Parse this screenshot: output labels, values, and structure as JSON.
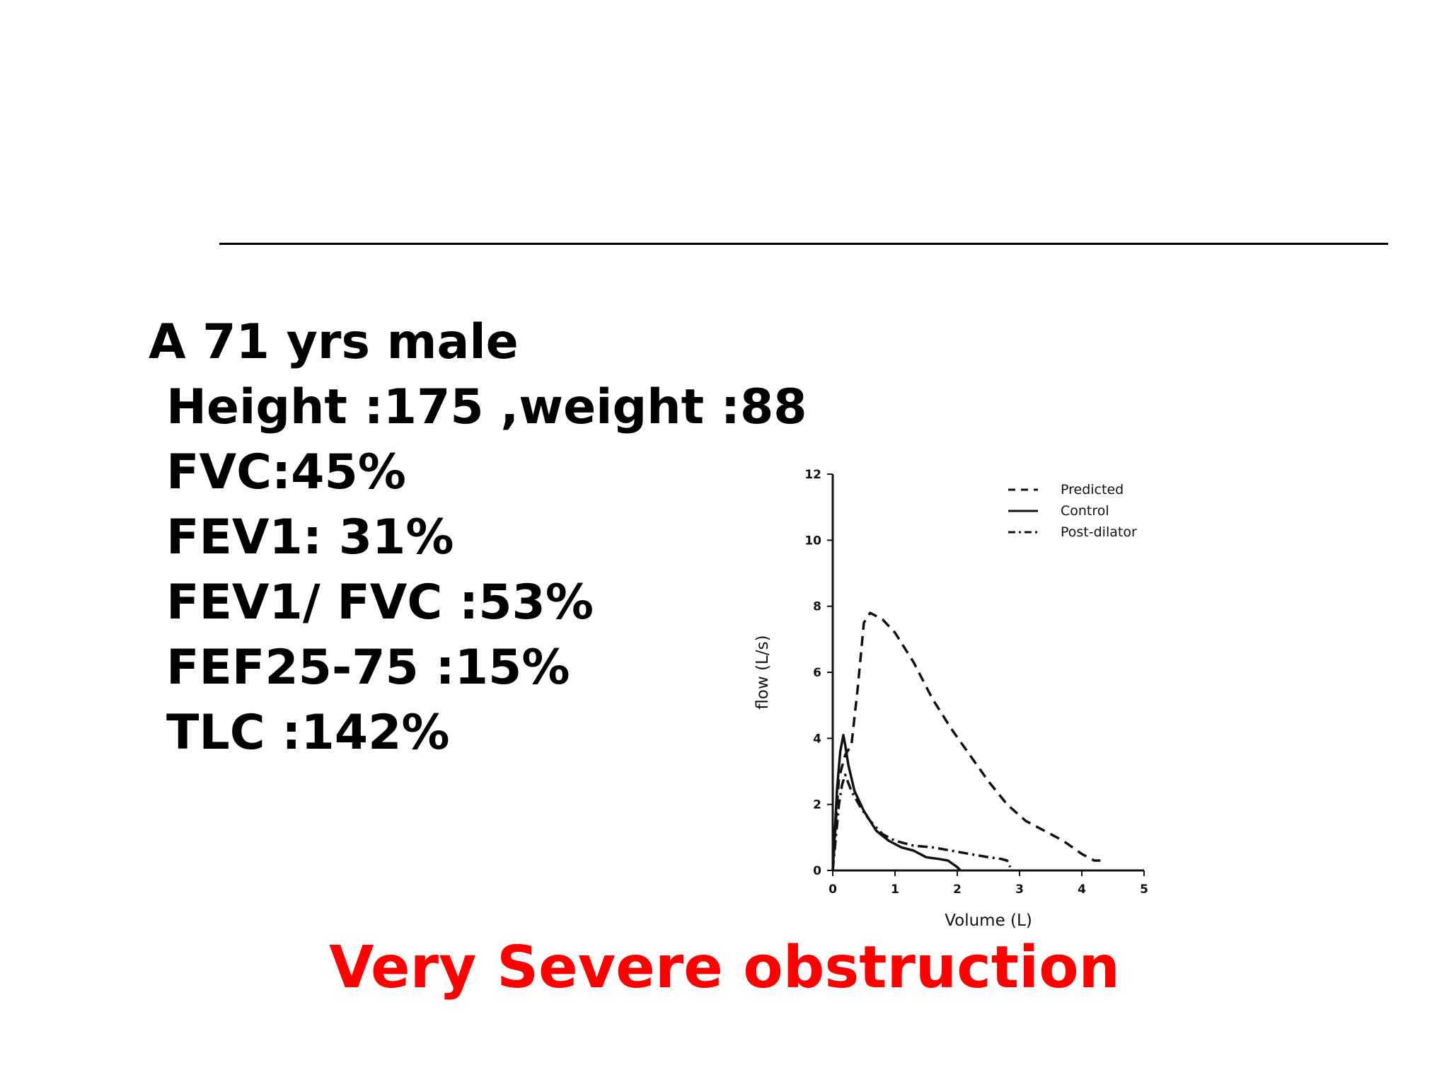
{
  "case": {
    "headline": "A 71 yrs male",
    "items": [
      "Height :175 ,weight :88",
      "FVC:45%",
      "FEV1: 31%",
      "FEV1/ FVC :53%",
      "FEF25-75 :15%",
      "TLC :142%"
    ]
  },
  "verdict": "Very Severe obstruction",
  "chart_data": {
    "type": "line",
    "xlabel": "Volume (L)",
    "ylabel": "flow (L/s)",
    "xlim": [
      0,
      5
    ],
    "ylim": [
      0,
      12
    ],
    "xticks": [
      "0",
      "1",
      "2",
      "3",
      "4",
      "5"
    ],
    "yticks": [
      "0",
      "2",
      "4",
      "6",
      "8",
      "10",
      "12"
    ],
    "grid": false,
    "legend_position": "top-right",
    "series": [
      {
        "name": "Predicted",
        "style": "dashed",
        "points": [
          [
            0.0,
            0.0
          ],
          [
            0.05,
            1.5
          ],
          [
            0.1,
            2.8
          ],
          [
            0.2,
            3.5
          ],
          [
            0.3,
            3.8
          ],
          [
            0.4,
            5.5
          ],
          [
            0.5,
            7.5
          ],
          [
            0.6,
            7.8
          ],
          [
            0.8,
            7.6
          ],
          [
            1.0,
            7.2
          ],
          [
            1.3,
            6.3
          ],
          [
            1.6,
            5.2
          ],
          [
            1.9,
            4.3
          ],
          [
            2.2,
            3.5
          ],
          [
            2.5,
            2.7
          ],
          [
            2.8,
            2.0
          ],
          [
            3.1,
            1.5
          ],
          [
            3.4,
            1.2
          ],
          [
            3.7,
            0.9
          ],
          [
            4.0,
            0.5
          ],
          [
            4.2,
            0.3
          ],
          [
            4.3,
            0.3
          ]
        ]
      },
      {
        "name": "Control",
        "style": "solid",
        "points": [
          [
            0.0,
            0.0
          ],
          [
            0.03,
            1.0
          ],
          [
            0.07,
            2.5
          ],
          [
            0.12,
            3.6
          ],
          [
            0.17,
            4.1
          ],
          [
            0.2,
            3.8
          ],
          [
            0.25,
            3.2
          ],
          [
            0.35,
            2.4
          ],
          [
            0.5,
            1.8
          ],
          [
            0.7,
            1.2
          ],
          [
            0.9,
            0.9
          ],
          [
            1.1,
            0.7
          ],
          [
            1.3,
            0.6
          ],
          [
            1.5,
            0.4
          ],
          [
            1.7,
            0.35
          ],
          [
            1.85,
            0.3
          ],
          [
            2.0,
            0.1
          ],
          [
            2.05,
            0.0
          ]
        ]
      },
      {
        "name": "Post-dilator",
        "style": "dashdot",
        "points": [
          [
            0.0,
            0.0
          ],
          [
            0.05,
            1.0
          ],
          [
            0.1,
            2.0
          ],
          [
            0.15,
            2.6
          ],
          [
            0.2,
            2.9
          ],
          [
            0.3,
            2.4
          ],
          [
            0.45,
            1.9
          ],
          [
            0.6,
            1.5
          ],
          [
            0.8,
            1.1
          ],
          [
            1.0,
            0.9
          ],
          [
            1.3,
            0.75
          ],
          [
            1.6,
            0.7
          ],
          [
            1.9,
            0.6
          ],
          [
            2.2,
            0.5
          ],
          [
            2.5,
            0.4
          ],
          [
            2.7,
            0.35
          ],
          [
            2.8,
            0.3
          ],
          [
            2.85,
            0.1
          ]
        ]
      }
    ]
  }
}
